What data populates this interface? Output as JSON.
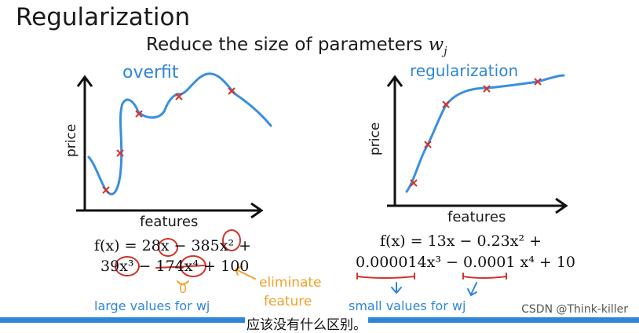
{
  "slide": {
    "title": "Regularization",
    "subtitle_prefix": "Reduce the size of parameters ",
    "subtitle_var": "w",
    "subtitle_sub": "j"
  },
  "left_panel": {
    "annotation": "overfit",
    "ylabel": "price",
    "xlabel": "features",
    "eq_line1": "f(x) = 28x − 385x² +",
    "eq_line2": "39x³ − 174x⁴ + 100",
    "note_large": "large values for wj",
    "note_eliminate_1": "eliminate",
    "note_eliminate_2": "feature",
    "note_zero": "0"
  },
  "right_panel": {
    "annotation": "regularization",
    "ylabel": "price",
    "xlabel": "features",
    "eq_line1": "f(x) = 13x − 0.23x² +",
    "eq_line2": "0.000014x³ − 0.0001 x⁴ + 10",
    "note_small": "small values for wj"
  },
  "caption": "应该没有什么区别。",
  "watermark": "CSDN @Think-killer",
  "colors": {
    "curve": "#3a8ee0",
    "marker": "#d0342c",
    "blue_ink": "#2f86d8",
    "orange_ink": "#f0a12a"
  }
}
